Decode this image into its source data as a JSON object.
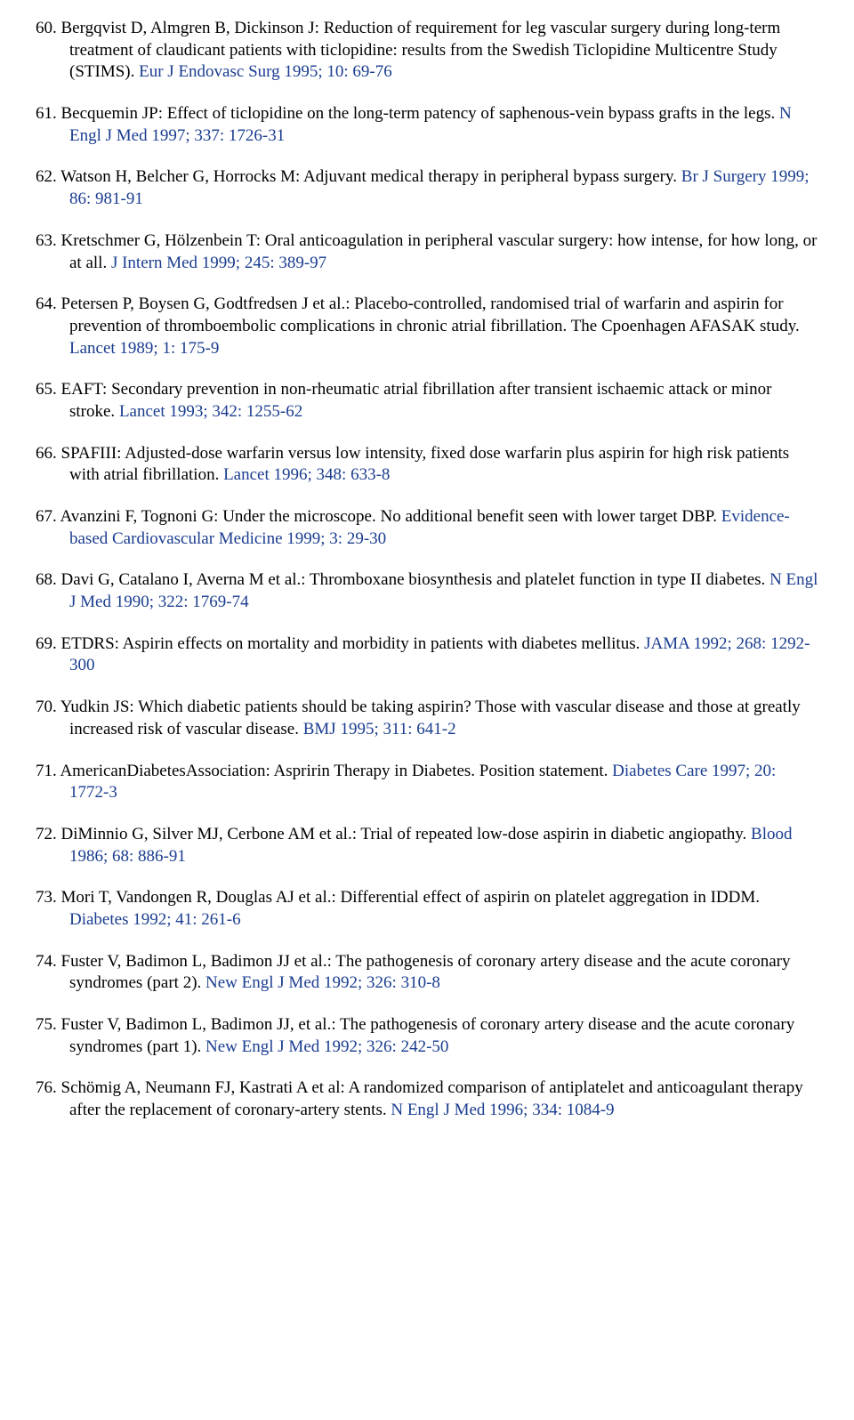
{
  "colors": {
    "text": "#000000",
    "journal": "#1a3d8f",
    "background": "#ffffff"
  },
  "typography": {
    "font_family": "Times New Roman",
    "font_size": 19,
    "line_height": 1.3
  },
  "references": [
    {
      "num": "60.",
      "text": "Bergqvist D, Almgren B, Dickinson J: Reduction of requirement for leg vascular surgery during long-term treatment of claudicant patients with ticlopidine: results from the Swedish Ticlopidine Multicentre Study (STIMS). ",
      "journal": "Eur J Endovasc Surg 1995; 10: 69-76"
    },
    {
      "num": "61.",
      "text": "Becquemin JP: Effect of ticlopidine on the long-term patency of saphenous-vein bypass grafts in the legs. ",
      "journal": "N Engl J Med 1997; 337: 1726-31"
    },
    {
      "num": "62.",
      "text": "Watson H, Belcher G, Horrocks M: Adjuvant medical therapy in peripheral bypass surgery. ",
      "journal": "Br J Surgery 1999; 86: 981-91"
    },
    {
      "num": "63.",
      "text": "Kretschmer G, Hölzenbein T: Oral anticoagulation in peripheral vascular surgery: how intense, for how long, or at all. ",
      "journal": "J Intern Med 1999; 245: 389-97"
    },
    {
      "num": "64.",
      "text": "Petersen P, Boysen G, Godtfredsen J et al.: Placebo-controlled, randomised trial of warfarin and aspirin for prevention of thromboembolic complications in chronic atrial fibrillation. The Cpoenhagen AFASAK study. ",
      "journal": "Lancet 1989; 1: 175-9"
    },
    {
      "num": "65.",
      "text": "EAFT: Secondary prevention in non-rheumatic atrial fibrillation after transient ischaemic attack or minor stroke. ",
      "journal": "Lancet 1993; 342: 1255-62"
    },
    {
      "num": "66.",
      "text": "SPAFIII: Adjusted-dose warfarin versus low intensity, fixed dose warfarin plus aspirin for high risk patients with atrial fibrillation. ",
      "journal": "Lancet 1996; 348: 633-8"
    },
    {
      "num": "67.",
      "text": "Avanzini F, Tognoni G: Under the microscope. No additional benefit seen with lower target DBP. ",
      "journal": "Evidence-based Cardiovascular Medicine 1999; 3: 29-30"
    },
    {
      "num": "68.",
      "text": "Davi G, Catalano I, Averna M et al.: Thromboxane biosynthesis and platelet function in type II diabetes. ",
      "journal": "N Engl J Med 1990; 322: 1769-74"
    },
    {
      "num": "69.",
      "text": "ETDRS: Aspirin effects on mortality and morbidity in patients with diabetes mellitus. ",
      "journal": "JAMA 1992; 268: 1292-300"
    },
    {
      "num": "70.",
      "text": "Yudkin JS: Which diabetic patients should be taking aspirin? Those with vascular disease and those at greatly increased risk of vascular disease. ",
      "journal": "BMJ 1995; 311: 641-2"
    },
    {
      "num": "71.",
      "text": "AmericanDiabetesAssociation: Aspririn Therapy in Diabetes. Position statement. ",
      "journal": "Diabetes Care 1997; 20: 1772-3"
    },
    {
      "num": "72.",
      "text": "DiMinnio G, Silver MJ, Cerbone AM et al.: Trial of repeated low-dose aspirin in diabetic angiopathy. ",
      "journal": "Blood 1986; 68: 886-91"
    },
    {
      "num": "73.",
      "text": "Mori T, Vandongen R, Douglas AJ et al.: Differential effect of aspirin on platelet aggregation in IDDM. ",
      "journal": "Diabetes 1992; 41: 261-6"
    },
    {
      "num": "74.",
      "text": "Fuster V, Badimon L, Badimon JJ et al.: The pathogenesis of coronary artery disease and the acute coronary syndromes (part 2). ",
      "journal": "New Engl J Med 1992; 326: 310-8"
    },
    {
      "num": "75.",
      "text": "Fuster V, Badimon L, Badimon JJ, et al.: The pathogenesis of coronary artery disease and the acute coronary syndromes (part 1). ",
      "journal": "New Engl J Med 1992; 326: 242-50"
    },
    {
      "num": "76.",
      "text": "Schömig A, Neumann FJ, Kastrati A et al: A randomized comparison of antiplatelet and anticoagulant therapy after the replacement of coronary-artery stents. ",
      "journal": "N Engl J Med 1996; 334: 1084-9"
    }
  ]
}
